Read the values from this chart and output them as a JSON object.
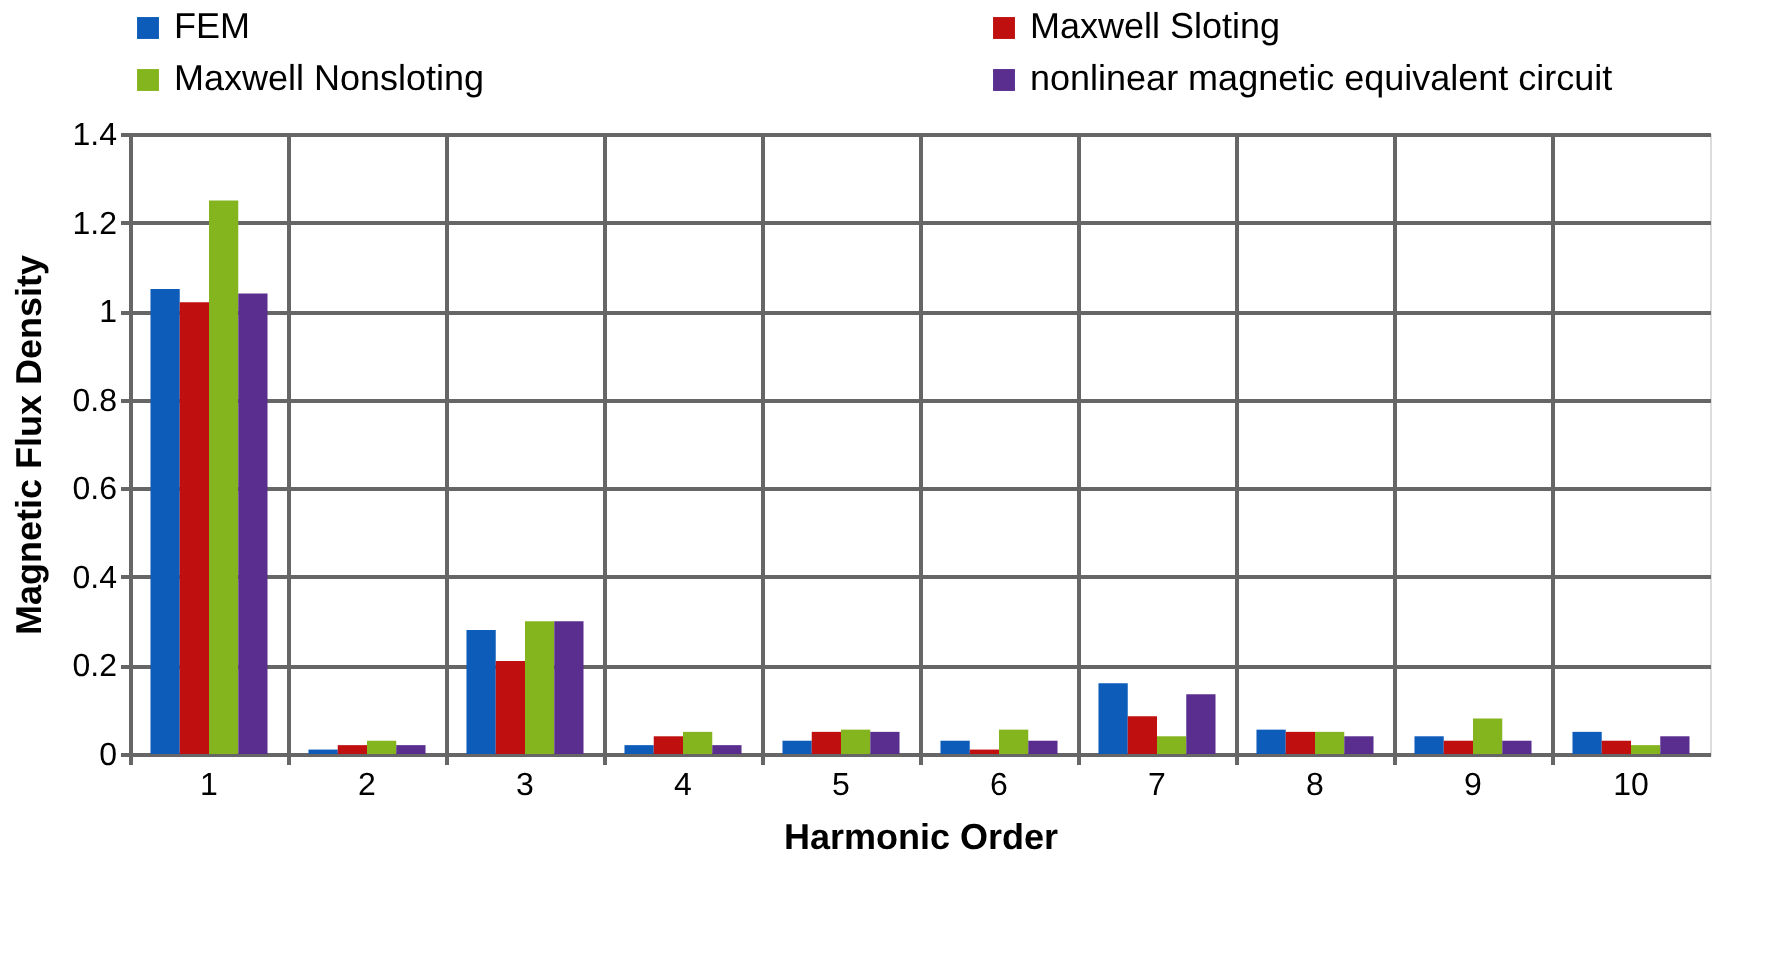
{
  "chart_data": {
    "type": "bar",
    "xlabel": "Harmonic Order",
    "ylabel": "Magnetic Flux Density",
    "categories": [
      "1",
      "2",
      "3",
      "4",
      "5",
      "6",
      "7",
      "8",
      "9",
      "10"
    ],
    "series": [
      {
        "name": "FEM",
        "color": "#0d5cb9",
        "values": [
          1.05,
          0.01,
          0.28,
          0.02,
          0.03,
          0.03,
          0.16,
          0.055,
          0.04,
          0.05
        ]
      },
      {
        "name": "Maxwell Sloting",
        "color": "#bf0f0f",
        "values": [
          1.02,
          0.02,
          0.21,
          0.04,
          0.05,
          0.01,
          0.085,
          0.05,
          0.03,
          0.03
        ]
      },
      {
        "name": "Maxwell Nonsloting",
        "color": "#84b41e",
        "values": [
          1.25,
          0.03,
          0.3,
          0.05,
          0.055,
          0.055,
          0.04,
          0.05,
          0.08,
          0.02
        ]
      },
      {
        "name": "nonlinear magnetic equivalent circuit",
        "color": "#5a2e8e",
        "values": [
          1.04,
          0.02,
          0.3,
          0.02,
          0.05,
          0.03,
          0.135,
          0.04,
          0.03,
          0.04
        ]
      }
    ],
    "ylim": [
      0,
      1.4
    ],
    "yticks": [
      0,
      0.2,
      0.4,
      0.6,
      0.8,
      1,
      1.2,
      1.4
    ],
    "grid": true,
    "legend": "top"
  }
}
